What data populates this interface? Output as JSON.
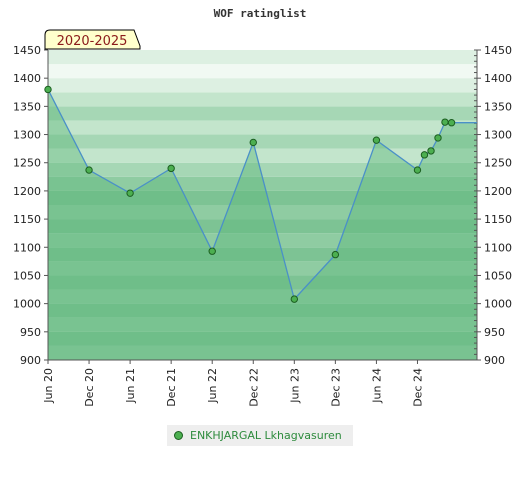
{
  "chart_data": {
    "type": "line",
    "title": "WOF ratinglist",
    "period_badge": "2020-2025",
    "x_ticks": [
      "Jun 20",
      "Dec 20",
      "Jun 21",
      "Dec 21",
      "Jun 22",
      "Dec 22",
      "Jun 23",
      "Dec 23",
      "Jun 24",
      "Dec 24"
    ],
    "ylim": [
      900,
      1450
    ],
    "y_ticks": [
      900,
      950,
      1000,
      1050,
      1100,
      1150,
      1200,
      1250,
      1300,
      1350,
      1400,
      1450
    ],
    "xlim": [
      0,
      10.45
    ],
    "grid": false,
    "legend_position": "bottom-center",
    "series": [
      {
        "name": "ENKHJARGAL Lkhagvasuren",
        "points": [
          {
            "x": 0,
            "y": 1380
          },
          {
            "x": 1,
            "y": 1237
          },
          {
            "x": 2,
            "y": 1196
          },
          {
            "x": 3,
            "y": 1240
          },
          {
            "x": 4,
            "y": 1093
          },
          {
            "x": 5,
            "y": 1286
          },
          {
            "x": 6,
            "y": 1008
          },
          {
            "x": 7,
            "y": 1087
          },
          {
            "x": 8,
            "y": 1290
          },
          {
            "x": 9,
            "y": 1237
          },
          {
            "x": 9.17,
            "y": 1264
          },
          {
            "x": 9.33,
            "y": 1271
          },
          {
            "x": 9.5,
            "y": 1294
          },
          {
            "x": 9.67,
            "y": 1322
          },
          {
            "x": 9.83,
            "y": 1321
          }
        ]
      }
    ]
  },
  "colors": {
    "band_dark": "#7dc394",
    "band_mid": "#a6d7b5",
    "band_light": "#e7f4ea",
    "area_fill": "#5fb87c",
    "line": "#4a90c8",
    "marker_fill": "#4caf50",
    "marker_stroke": "#1b5e20",
    "badge_bg": "#ffffcc",
    "badge_text": "#8b1a1a"
  }
}
